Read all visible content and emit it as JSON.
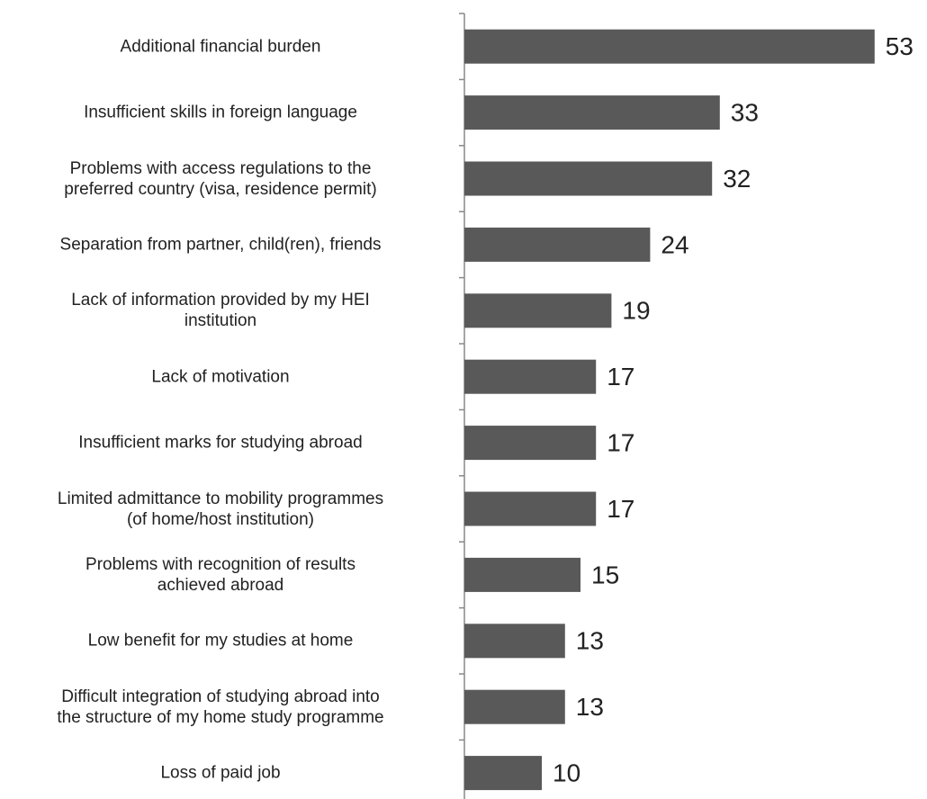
{
  "chart_data": {
    "type": "barh",
    "categories": [
      "Additional financial burden",
      "Insufficient skills in foreign language",
      "Problems with access regulations to the\npreferred country (visa, residence permit)",
      "Separation from partner, child(ren), friends",
      "Lack of information provided by my HEI\ninstitution",
      "Lack of motivation",
      "Insufficient marks for studying abroad",
      "Limited admittance to mobility programmes\n(of home/host institution)",
      "Problems with recognition of results\nachieved abroad",
      "Low benefit for my studies at home",
      "Difficult integration of studying abroad into\nthe structure of my home study programme",
      "Loss of paid job"
    ],
    "values": [
      53,
      33,
      32,
      24,
      19,
      17,
      17,
      17,
      15,
      13,
      13,
      10
    ],
    "color": "#595959"
  }
}
